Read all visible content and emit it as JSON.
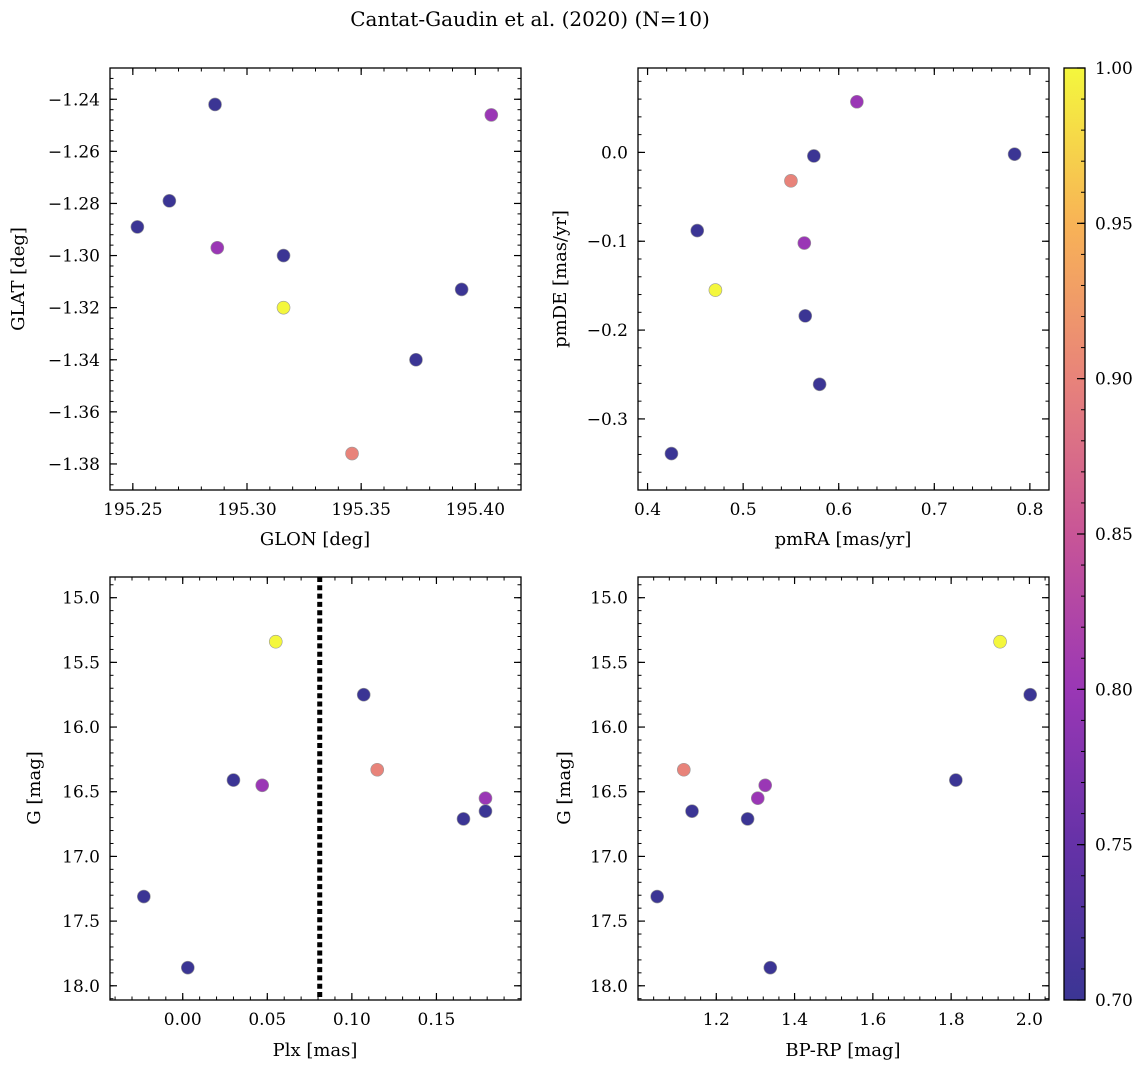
{
  "title": "Cantat-Gaudin et al. (2020) (N=10)",
  "chart_data": [
    {
      "type": "scatter",
      "name": "glon-glat",
      "xlabel": "GLON [deg]",
      "ylabel": "GLAT [deg]",
      "xlim": [
        195.24,
        195.42
      ],
      "ylim": [
        -1.39,
        -1.228
      ],
      "invert_y": false,
      "xticks": [
        195.25,
        195.3,
        195.35,
        195.4
      ],
      "xticklabels": [
        "195.25",
        "195.30",
        "195.35",
        "195.40"
      ],
      "yticks": [
        -1.24,
        -1.26,
        -1.28,
        -1.3,
        -1.32,
        -1.34,
        -1.36,
        -1.38
      ],
      "yticklabels": [
        "−1.24",
        "−1.26",
        "−1.28",
        "−1.30",
        "−1.32",
        "−1.34",
        "−1.36",
        "−1.38"
      ],
      "points": [
        {
          "x": 195.252,
          "y": -1.289,
          "c": 0.7
        },
        {
          "x": 195.266,
          "y": -1.279,
          "c": 0.7
        },
        {
          "x": 195.286,
          "y": -1.242,
          "c": 0.7
        },
        {
          "x": 195.287,
          "y": -1.297,
          "c": 0.8
        },
        {
          "x": 195.316,
          "y": -1.3,
          "c": 0.7
        },
        {
          "x": 195.316,
          "y": -1.32,
          "c": 1.0
        },
        {
          "x": 195.346,
          "y": -1.376,
          "c": 0.9
        },
        {
          "x": 195.374,
          "y": -1.34,
          "c": 0.7
        },
        {
          "x": 195.394,
          "y": -1.313,
          "c": 0.7
        },
        {
          "x": 195.407,
          "y": -1.246,
          "c": 0.8
        }
      ]
    },
    {
      "type": "scatter",
      "name": "pmra-pmde",
      "xlabel": "pmRA [mas/yr]",
      "ylabel": "pmDE [mas/yr]",
      "xlim": [
        0.39,
        0.82
      ],
      "ylim": [
        -0.38,
        0.095
      ],
      "invert_y": false,
      "xticks": [
        0.4,
        0.5,
        0.6,
        0.7,
        0.8
      ],
      "xticklabels": [
        "0.4",
        "0.5",
        "0.6",
        "0.7",
        "0.8"
      ],
      "yticks": [
        0.0,
        -0.1,
        -0.2,
        -0.3
      ],
      "yticklabels": [
        "0.0",
        "−0.1",
        "−0.2",
        "−0.3"
      ],
      "points": [
        {
          "x": 0.425,
          "y": -0.339,
          "c": 0.7
        },
        {
          "x": 0.452,
          "y": -0.088,
          "c": 0.7
        },
        {
          "x": 0.471,
          "y": -0.155,
          "c": 1.0
        },
        {
          "x": 0.55,
          "y": -0.032,
          "c": 0.9
        },
        {
          "x": 0.564,
          "y": -0.102,
          "c": 0.8
        },
        {
          "x": 0.565,
          "y": -0.184,
          "c": 0.7
        },
        {
          "x": 0.574,
          "y": -0.004,
          "c": 0.7
        },
        {
          "x": 0.58,
          "y": -0.261,
          "c": 0.7
        },
        {
          "x": 0.619,
          "y": 0.057,
          "c": 0.8
        },
        {
          "x": 0.784,
          "y": -0.002,
          "c": 0.7
        }
      ]
    },
    {
      "type": "scatter",
      "name": "plx-g",
      "xlabel": "Plx [mas]",
      "ylabel": "G [mag]",
      "xlim": [
        -0.043,
        0.2
      ],
      "ylim": [
        14.84,
        18.11
      ],
      "invert_y": true,
      "vline": {
        "x": 0.081,
        "style": "dotted"
      },
      "xticks": [
        0.0,
        0.05,
        0.1,
        0.15
      ],
      "xticklabels": [
        "0.00",
        "0.05",
        "0.10",
        "0.15"
      ],
      "yticks": [
        15.0,
        15.5,
        16.0,
        16.5,
        17.0,
        17.5,
        18.0
      ],
      "yticklabels": [
        "15.0",
        "15.5",
        "16.0",
        "16.5",
        "17.0",
        "17.5",
        "18.0"
      ],
      "points": [
        {
          "x": -0.023,
          "y": 17.31,
          "c": 0.7
        },
        {
          "x": 0.003,
          "y": 17.86,
          "c": 0.7
        },
        {
          "x": 0.03,
          "y": 16.41,
          "c": 0.7
        },
        {
          "x": 0.047,
          "y": 16.45,
          "c": 0.8
        },
        {
          "x": 0.055,
          "y": 15.34,
          "c": 1.0
        },
        {
          "x": 0.107,
          "y": 15.75,
          "c": 0.7
        },
        {
          "x": 0.115,
          "y": 16.33,
          "c": 0.9
        },
        {
          "x": 0.166,
          "y": 16.71,
          "c": 0.7
        },
        {
          "x": 0.179,
          "y": 16.55,
          "c": 0.8
        },
        {
          "x": 0.179,
          "y": 16.65,
          "c": 0.7
        }
      ]
    },
    {
      "type": "scatter",
      "name": "bprp-g",
      "xlabel": "BP-RP [mag]",
      "ylabel": "G [mag]",
      "xlim": [
        1.0,
        2.05
      ],
      "ylim": [
        14.84,
        18.11
      ],
      "invert_y": true,
      "xticks": [
        1.2,
        1.4,
        1.6,
        1.8,
        2.0
      ],
      "xticklabels": [
        "1.2",
        "1.4",
        "1.6",
        "1.8",
        "2.0"
      ],
      "yticks": [
        15.0,
        15.5,
        16.0,
        16.5,
        17.0,
        17.5,
        18.0
      ],
      "yticklabels": [
        "15.0",
        "15.5",
        "16.0",
        "16.5",
        "17.0",
        "17.5",
        "18.0"
      ],
      "points": [
        {
          "x": 1.049,
          "y": 17.31,
          "c": 0.7
        },
        {
          "x": 1.117,
          "y": 16.33,
          "c": 0.9
        },
        {
          "x": 1.138,
          "y": 16.65,
          "c": 0.7
        },
        {
          "x": 1.28,
          "y": 16.71,
          "c": 0.7
        },
        {
          "x": 1.306,
          "y": 16.55,
          "c": 0.8
        },
        {
          "x": 1.325,
          "y": 16.45,
          "c": 0.8
        },
        {
          "x": 1.338,
          "y": 17.86,
          "c": 0.7
        },
        {
          "x": 1.812,
          "y": 16.41,
          "c": 0.7
        },
        {
          "x": 1.925,
          "y": 15.34,
          "c": 1.0
        },
        {
          "x": 2.002,
          "y": 15.75,
          "c": 0.7
        }
      ]
    }
  ],
  "colorbar": {
    "cmap": "plasma",
    "range": [
      0.7,
      1.0
    ],
    "ticks": [
      0.7,
      0.75,
      0.8,
      0.85,
      0.9,
      0.95,
      1.0
    ],
    "ticklabels": [
      "0.70",
      "0.75",
      "0.80",
      "0.85",
      "0.90",
      "0.95",
      "1.00"
    ],
    "stops": [
      "#3b3594",
      "#6532a7",
      "#9a37b5",
      "#c85597",
      "#e8837a",
      "#f8b356",
      "#f4f73d"
    ]
  }
}
